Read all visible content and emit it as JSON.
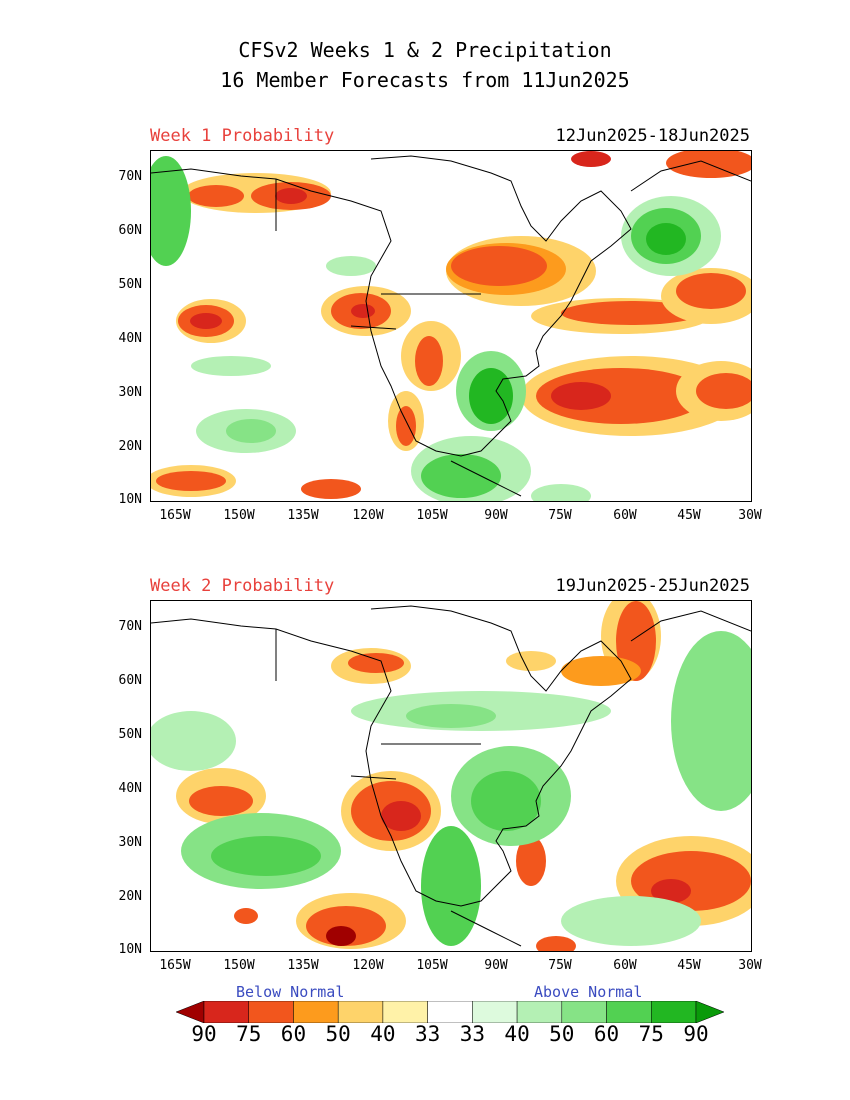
{
  "title": {
    "line1": "CFSv2 Weeks 1 & 2 Precipitation",
    "line2": "16 Member Forecasts from 11Jun2025"
  },
  "panels": [
    {
      "week_label": "Week 1 Probability",
      "date_range": "12Jun2025-18Jun2025"
    },
    {
      "week_label": "Week 2 Probability",
      "date_range": "19Jun2025-25Jun2025"
    }
  ],
  "axes": {
    "lat_labels": [
      "70N",
      "60N",
      "50N",
      "40N",
      "30N",
      "20N",
      "10N"
    ],
    "lon_labels": [
      "165W",
      "150W",
      "135W",
      "120W",
      "105W",
      "90W",
      "75W",
      "60W",
      "45W",
      "30W"
    ]
  },
  "colorbar": {
    "below_label": "Below Normal",
    "above_label": "Above Normal",
    "ticks": [
      "90",
      "75",
      "60",
      "50",
      "40",
      "33",
      "33",
      "40",
      "50",
      "60",
      "75",
      "90"
    ],
    "colors": [
      "#a00000",
      "#d8261c",
      "#f2561d",
      "#fd9b1d",
      "#fed36a",
      "#fff2a8",
      "#ffffff",
      "#ddfadd",
      "#b4f0b4",
      "#86e386",
      "#52d152",
      "#22b722",
      "#0a9a0a"
    ]
  }
}
